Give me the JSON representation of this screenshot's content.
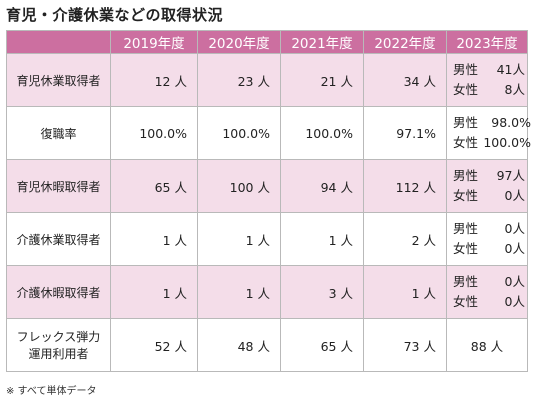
{
  "title": "育児・介護休業などの取得状況",
  "headers": [
    "",
    "2019年度",
    "2020年度",
    "2021年度",
    "2022年度",
    "2023年度"
  ],
  "rows": [
    {
      "label": "育児休業取得者",
      "values": [
        "12 人",
        "23 人",
        "21 人",
        "34 人"
      ],
      "fy2023": [
        {
          "k": "男性",
          "v": "41人"
        },
        {
          "k": "女性",
          "v": "8人"
        }
      ]
    },
    {
      "label": "復職率",
      "values": [
        "100.0%",
        "100.0%",
        "100.0%",
        "97.1%"
      ],
      "fy2023": [
        {
          "k": "男性",
          "v": "98.0%"
        },
        {
          "k": "女性",
          "v": "100.0%"
        }
      ]
    },
    {
      "label": "育児休暇取得者",
      "values": [
        "65 人",
        "100 人",
        "94 人",
        "112 人"
      ],
      "fy2023": [
        {
          "k": "男性",
          "v": "97人"
        },
        {
          "k": "女性",
          "v": "0人"
        }
      ]
    },
    {
      "label": "介護休業取得者",
      "values": [
        "1 人",
        "1 人",
        "1 人",
        "2 人"
      ],
      "fy2023": [
        {
          "k": "男性",
          "v": "0人"
        },
        {
          "k": "女性",
          "v": "0人"
        }
      ]
    },
    {
      "label": "介護休暇取得者",
      "values": [
        "1 人",
        "1 人",
        "3 人",
        "1 人"
      ],
      "fy2023": [
        {
          "k": "男性",
          "v": "0人"
        },
        {
          "k": "女性",
          "v": "0人"
        }
      ]
    },
    {
      "label_line1": "フレックス弾力",
      "label_line2": "運用利用者",
      "values": [
        "52 人",
        "48 人",
        "65 人",
        "73 人"
      ],
      "fy2023_single": "88 人"
    }
  ],
  "note": "※ すべて単体データ",
  "colors": {
    "header_bg": "#cc6fa0",
    "stripe_bg": "#f4dde9"
  }
}
